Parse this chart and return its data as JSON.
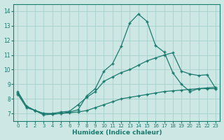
{
  "xlabel": "Humidex (Indice chaleur)",
  "xlim": [
    -0.5,
    23.5
  ],
  "ylim": [
    6.5,
    14.5
  ],
  "xticks": [
    0,
    1,
    2,
    3,
    4,
    5,
    6,
    7,
    8,
    9,
    10,
    11,
    12,
    13,
    14,
    15,
    16,
    17,
    18,
    19,
    20,
    21,
    22,
    23
  ],
  "yticks": [
    7,
    8,
    9,
    10,
    11,
    12,
    13,
    14
  ],
  "bg_color": "#cde8e4",
  "grid_color": "#a0ccc8",
  "line_color": "#1a7a6e",
  "line1_x": [
    0,
    1,
    2,
    3,
    4,
    5,
    6,
    7,
    8,
    9,
    10,
    11,
    12,
    13,
    14,
    15,
    16,
    17,
    18,
    19,
    20,
    21,
    22,
    23
  ],
  "line1_y": [
    8.5,
    7.5,
    7.2,
    6.9,
    6.95,
    7.0,
    7.1,
    7.25,
    8.2,
    8.7,
    9.9,
    10.4,
    11.6,
    13.2,
    13.8,
    13.3,
    11.65,
    11.2,
    9.8,
    9.0,
    8.5,
    8.7,
    8.7,
    8.7
  ],
  "line2_x": [
    0,
    1,
    2,
    3,
    4,
    5,
    6,
    7,
    8,
    9,
    10,
    11,
    12,
    13,
    14,
    15,
    16,
    17,
    18,
    19,
    20,
    21,
    22,
    23
  ],
  "line2_y": [
    8.4,
    7.5,
    7.2,
    7.0,
    7.0,
    7.1,
    7.15,
    7.6,
    8.1,
    8.5,
    9.2,
    9.5,
    9.8,
    10.0,
    10.3,
    10.6,
    10.8,
    11.0,
    11.15,
    9.9,
    9.7,
    9.6,
    9.65,
    8.7
  ],
  "line3_x": [
    0,
    1,
    2,
    3,
    4,
    5,
    6,
    7,
    8,
    9,
    10,
    11,
    12,
    13,
    14,
    15,
    16,
    17,
    18,
    19,
    20,
    21,
    22,
    23
  ],
  "line3_y": [
    8.3,
    7.4,
    7.2,
    7.0,
    6.95,
    7.0,
    7.05,
    7.1,
    7.2,
    7.4,
    7.6,
    7.8,
    8.0,
    8.1,
    8.2,
    8.3,
    8.4,
    8.5,
    8.55,
    8.6,
    8.65,
    8.7,
    8.75,
    8.8
  ],
  "figsize": [
    3.2,
    2.0
  ],
  "dpi": 100
}
